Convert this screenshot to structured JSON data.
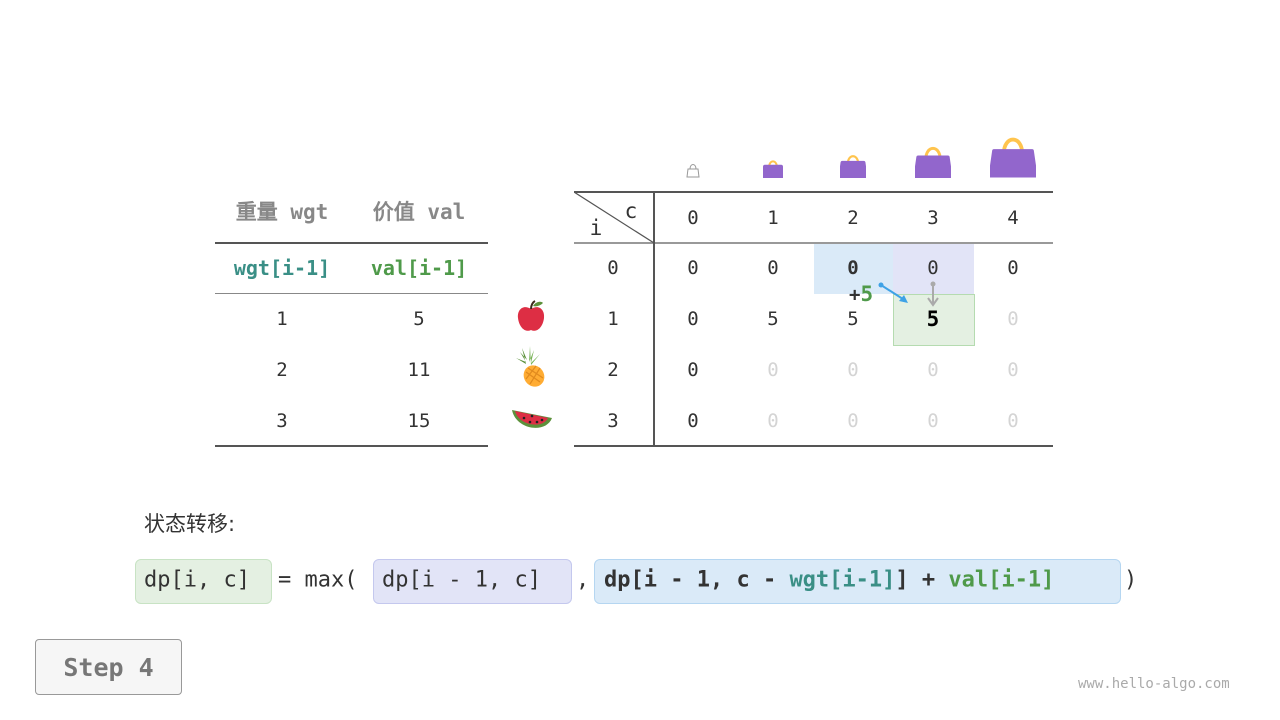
{
  "items_table": {
    "headers": [
      "重量 wgt",
      "价值 val"
    ],
    "subheaders": [
      "wgt[i-1]",
      "val[i-1]"
    ],
    "rows": [
      [
        "1",
        "5"
      ],
      [
        "2",
        "11"
      ],
      [
        "3",
        "15"
      ]
    ],
    "item_icons": [
      "apple-icon",
      "pineapple-icon",
      "watermelon-icon"
    ]
  },
  "dp_table": {
    "corner_row_label": "i",
    "corner_col_label": "c",
    "col_headers": [
      "0",
      "1",
      "2",
      "3",
      "4"
    ],
    "row_headers": [
      "0",
      "1",
      "2",
      "3"
    ],
    "rows": [
      [
        "0",
        "0",
        "0",
        "0",
        "0"
      ],
      [
        "0",
        "5",
        "5",
        "5",
        "0"
      ],
      [
        "0",
        "0",
        "0",
        "0",
        "0"
      ],
      [
        "0",
        "0",
        "0",
        "0",
        "0"
      ]
    ],
    "bag_icons": [
      "bag-empty-icon",
      "bag-icon",
      "bag-icon",
      "bag-icon",
      "bag-icon"
    ],
    "plus_label": "+",
    "plus_value": "5",
    "colors": {
      "blue": "#daeaf8",
      "purple": "#e2e4f7",
      "green": "#e4f0e2"
    }
  },
  "transition": {
    "label": "状态转移:",
    "lhs": "dp[i, c]",
    "eq": "= max(",
    "opt1": "dp[i - 1, c]",
    "comma": ",",
    "opt2_a": "dp[i - 1, c - ",
    "opt2_wgt": "wgt[i-1]",
    "opt2_b": "] + ",
    "opt2_val": "val[i-1]",
    "close": ")"
  },
  "step_button": "Step 4",
  "watermark": "www.hello-algo.com"
}
